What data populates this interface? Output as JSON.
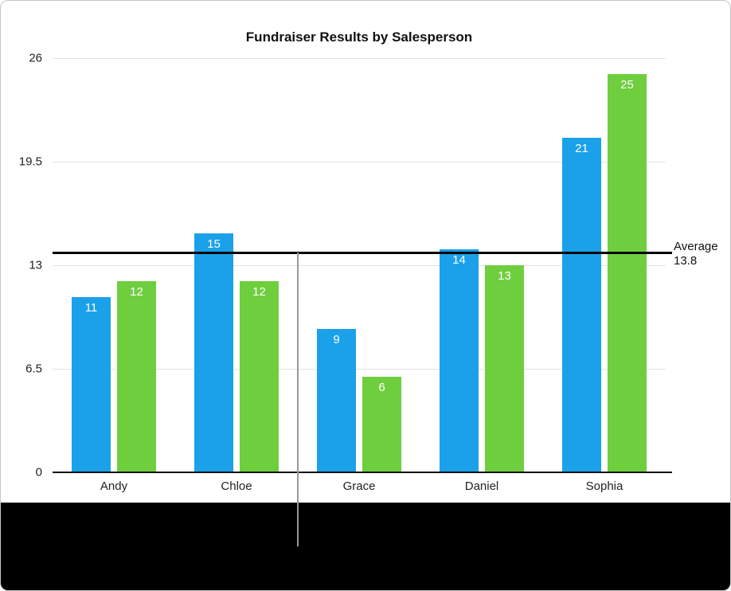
{
  "chart_data": {
    "type": "bar",
    "title": "Fundraiser Results by Salesperson",
    "categories": [
      "Andy",
      "Chloe",
      "Grace",
      "Daniel",
      "Sophia"
    ],
    "series": [
      {
        "name": "blue",
        "color": "#1ba1e9",
        "values": [
          11,
          15,
          9,
          14,
          21
        ]
      },
      {
        "name": "green",
        "color": "#6fce3e",
        "values": [
          12,
          12,
          6,
          13,
          25
        ]
      }
    ],
    "ylim": [
      0,
      26
    ],
    "yticks": [
      0,
      6.5,
      13,
      19.5,
      26
    ],
    "grid": true,
    "legend": "none",
    "bar_value_labels_color": "#ffffff",
    "average_line": {
      "value": 13.8,
      "color": "#000000",
      "label_line1": "Average",
      "label_line2": "13.8"
    }
  }
}
